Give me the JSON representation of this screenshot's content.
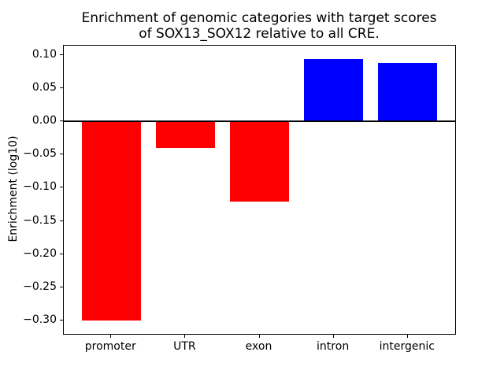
{
  "chart_data": {
    "type": "bar",
    "title": "Enrichment of genomic categories with target scores\nof SOX13_SOX12 relative to all CRE.",
    "xlabel": "",
    "ylabel": "Enrichment (log10)",
    "categories": [
      "promoter",
      "UTR",
      "exon",
      "intron",
      "intergenic"
    ],
    "values": [
      -0.3,
      -0.04,
      -0.121,
      0.094,
      0.088
    ],
    "bar_colors": [
      "#ff0000",
      "#ff0000",
      "#ff0000",
      "#0000ff",
      "#0000ff"
    ],
    "negative_color": "#ff0000",
    "positive_color": "#0000ff",
    "ylim": [
      -0.3197,
      0.1137
    ],
    "yticks": [
      0.1,
      0.05,
      0.0,
      -0.05,
      -0.1,
      -0.15,
      -0.2,
      -0.25,
      -0.3
    ],
    "ytick_labels": [
      "0.10",
      "0.05",
      "0.00",
      "−0.05",
      "−0.10",
      "−0.15",
      "−0.20",
      "−0.25",
      "−0.30"
    ],
    "zero_line": true,
    "zero_line_color": "#000000",
    "grid": false,
    "legend_position": "none",
    "background_color": "#ffffff",
    "axes_color": "#000000"
  }
}
